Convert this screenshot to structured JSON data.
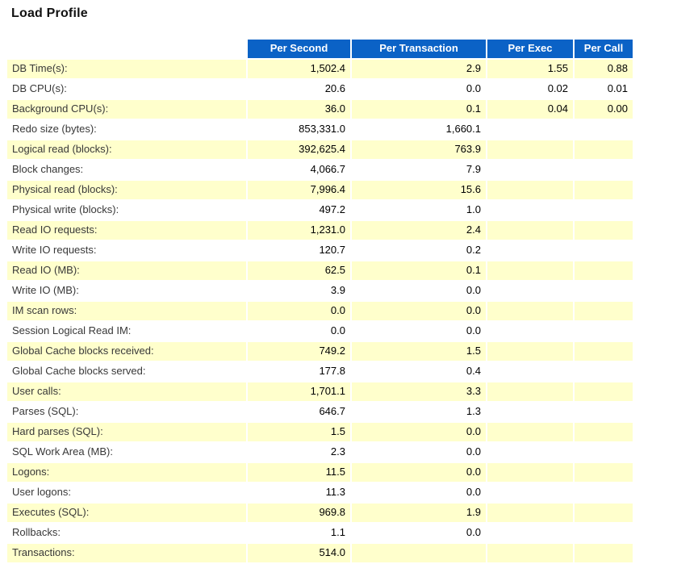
{
  "title": "Load Profile",
  "colors": {
    "header_bg": "#0b62c6",
    "header_text": "#ffffff",
    "row_odd_bg": "#ffffcc",
    "row_even_bg": "#ffffff"
  },
  "table": {
    "columns": [
      "Per Second",
      "Per Transaction",
      "Per Exec",
      "Per Call"
    ],
    "rows": [
      {
        "label": "DB Time(s):",
        "per_second": "1,502.4",
        "per_transaction": "2.9",
        "per_exec": "1.55",
        "per_call": "0.88"
      },
      {
        "label": "DB CPU(s):",
        "per_second": "20.6",
        "per_transaction": "0.0",
        "per_exec": "0.02",
        "per_call": "0.01"
      },
      {
        "label": "Background CPU(s):",
        "per_second": "36.0",
        "per_transaction": "0.1",
        "per_exec": "0.04",
        "per_call": "0.00"
      },
      {
        "label": "Redo size (bytes):",
        "per_second": "853,331.0",
        "per_transaction": "1,660.1",
        "per_exec": "",
        "per_call": ""
      },
      {
        "label": "Logical read (blocks):",
        "per_second": "392,625.4",
        "per_transaction": "763.9",
        "per_exec": "",
        "per_call": ""
      },
      {
        "label": "Block changes:",
        "per_second": "4,066.7",
        "per_transaction": "7.9",
        "per_exec": "",
        "per_call": ""
      },
      {
        "label": "Physical read (blocks):",
        "per_second": "7,996.4",
        "per_transaction": "15.6",
        "per_exec": "",
        "per_call": ""
      },
      {
        "label": "Physical write (blocks):",
        "per_second": "497.2",
        "per_transaction": "1.0",
        "per_exec": "",
        "per_call": ""
      },
      {
        "label": "Read IO requests:",
        "per_second": "1,231.0",
        "per_transaction": "2.4",
        "per_exec": "",
        "per_call": ""
      },
      {
        "label": "Write IO requests:",
        "per_second": "120.7",
        "per_transaction": "0.2",
        "per_exec": "",
        "per_call": ""
      },
      {
        "label": "Read IO (MB):",
        "per_second": "62.5",
        "per_transaction": "0.1",
        "per_exec": "",
        "per_call": ""
      },
      {
        "label": "Write IO (MB):",
        "per_second": "3.9",
        "per_transaction": "0.0",
        "per_exec": "",
        "per_call": ""
      },
      {
        "label": "IM scan rows:",
        "per_second": "0.0",
        "per_transaction": "0.0",
        "per_exec": "",
        "per_call": ""
      },
      {
        "label": "Session Logical Read IM:",
        "per_second": "0.0",
        "per_transaction": "0.0",
        "per_exec": "",
        "per_call": ""
      },
      {
        "label": "Global Cache blocks received:",
        "per_second": "749.2",
        "per_transaction": "1.5",
        "per_exec": "",
        "per_call": ""
      },
      {
        "label": "Global Cache blocks served:",
        "per_second": "177.8",
        "per_transaction": "0.4",
        "per_exec": "",
        "per_call": ""
      },
      {
        "label": "User calls:",
        "per_second": "1,701.1",
        "per_transaction": "3.3",
        "per_exec": "",
        "per_call": ""
      },
      {
        "label": "Parses (SQL):",
        "per_second": "646.7",
        "per_transaction": "1.3",
        "per_exec": "",
        "per_call": ""
      },
      {
        "label": "Hard parses (SQL):",
        "per_second": "1.5",
        "per_transaction": "0.0",
        "per_exec": "",
        "per_call": ""
      },
      {
        "label": "SQL Work Area (MB):",
        "per_second": "2.3",
        "per_transaction": "0.0",
        "per_exec": "",
        "per_call": ""
      },
      {
        "label": "Logons:",
        "per_second": "11.5",
        "per_transaction": "0.0",
        "per_exec": "",
        "per_call": ""
      },
      {
        "label": "User logons:",
        "per_second": "11.3",
        "per_transaction": "0.0",
        "per_exec": "",
        "per_call": ""
      },
      {
        "label": "Executes (SQL):",
        "per_second": "969.8",
        "per_transaction": "1.9",
        "per_exec": "",
        "per_call": ""
      },
      {
        "label": "Rollbacks:",
        "per_second": "1.1",
        "per_transaction": "0.0",
        "per_exec": "",
        "per_call": ""
      },
      {
        "label": "Transactions:",
        "per_second": "514.0",
        "per_transaction": "",
        "per_exec": "",
        "per_call": ""
      }
    ]
  }
}
